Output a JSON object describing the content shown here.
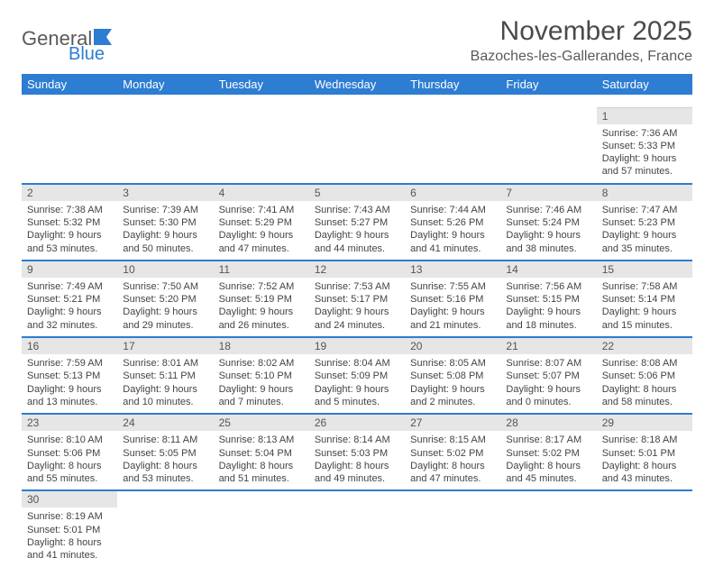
{
  "brand": {
    "name1": "General",
    "name2": "Blue"
  },
  "title": "November 2025",
  "location": "Bazoches-les-Gallerandes, France",
  "colors": {
    "header_bg": "#2d7dd2",
    "header_text": "#ffffff",
    "daynum_bg": "#e6e6e6",
    "row_divider": "#2d7dd2",
    "body_text": "#444444",
    "title_text": "#4a4a4a"
  },
  "typography": {
    "title_fontsize": 30,
    "location_fontsize": 16,
    "dayheader_fontsize": 13,
    "daynum_fontsize": 12,
    "cell_fontsize": 11
  },
  "dayHeaders": [
    "Sunday",
    "Monday",
    "Tuesday",
    "Wednesday",
    "Thursday",
    "Friday",
    "Saturday"
  ],
  "weeks": [
    [
      null,
      null,
      null,
      null,
      null,
      null,
      {
        "n": "1",
        "sr": "Sunrise: 7:36 AM",
        "ss": "Sunset: 5:33 PM",
        "d1": "Daylight: 9 hours",
        "d2": "and 57 minutes."
      }
    ],
    [
      {
        "n": "2",
        "sr": "Sunrise: 7:38 AM",
        "ss": "Sunset: 5:32 PM",
        "d1": "Daylight: 9 hours",
        "d2": "and 53 minutes."
      },
      {
        "n": "3",
        "sr": "Sunrise: 7:39 AM",
        "ss": "Sunset: 5:30 PM",
        "d1": "Daylight: 9 hours",
        "d2": "and 50 minutes."
      },
      {
        "n": "4",
        "sr": "Sunrise: 7:41 AM",
        "ss": "Sunset: 5:29 PM",
        "d1": "Daylight: 9 hours",
        "d2": "and 47 minutes."
      },
      {
        "n": "5",
        "sr": "Sunrise: 7:43 AM",
        "ss": "Sunset: 5:27 PM",
        "d1": "Daylight: 9 hours",
        "d2": "and 44 minutes."
      },
      {
        "n": "6",
        "sr": "Sunrise: 7:44 AM",
        "ss": "Sunset: 5:26 PM",
        "d1": "Daylight: 9 hours",
        "d2": "and 41 minutes."
      },
      {
        "n": "7",
        "sr": "Sunrise: 7:46 AM",
        "ss": "Sunset: 5:24 PM",
        "d1": "Daylight: 9 hours",
        "d2": "and 38 minutes."
      },
      {
        "n": "8",
        "sr": "Sunrise: 7:47 AM",
        "ss": "Sunset: 5:23 PM",
        "d1": "Daylight: 9 hours",
        "d2": "and 35 minutes."
      }
    ],
    [
      {
        "n": "9",
        "sr": "Sunrise: 7:49 AM",
        "ss": "Sunset: 5:21 PM",
        "d1": "Daylight: 9 hours",
        "d2": "and 32 minutes."
      },
      {
        "n": "10",
        "sr": "Sunrise: 7:50 AM",
        "ss": "Sunset: 5:20 PM",
        "d1": "Daylight: 9 hours",
        "d2": "and 29 minutes."
      },
      {
        "n": "11",
        "sr": "Sunrise: 7:52 AM",
        "ss": "Sunset: 5:19 PM",
        "d1": "Daylight: 9 hours",
        "d2": "and 26 minutes."
      },
      {
        "n": "12",
        "sr": "Sunrise: 7:53 AM",
        "ss": "Sunset: 5:17 PM",
        "d1": "Daylight: 9 hours",
        "d2": "and 24 minutes."
      },
      {
        "n": "13",
        "sr": "Sunrise: 7:55 AM",
        "ss": "Sunset: 5:16 PM",
        "d1": "Daylight: 9 hours",
        "d2": "and 21 minutes."
      },
      {
        "n": "14",
        "sr": "Sunrise: 7:56 AM",
        "ss": "Sunset: 5:15 PM",
        "d1": "Daylight: 9 hours",
        "d2": "and 18 minutes."
      },
      {
        "n": "15",
        "sr": "Sunrise: 7:58 AM",
        "ss": "Sunset: 5:14 PM",
        "d1": "Daylight: 9 hours",
        "d2": "and 15 minutes."
      }
    ],
    [
      {
        "n": "16",
        "sr": "Sunrise: 7:59 AM",
        "ss": "Sunset: 5:13 PM",
        "d1": "Daylight: 9 hours",
        "d2": "and 13 minutes."
      },
      {
        "n": "17",
        "sr": "Sunrise: 8:01 AM",
        "ss": "Sunset: 5:11 PM",
        "d1": "Daylight: 9 hours",
        "d2": "and 10 minutes."
      },
      {
        "n": "18",
        "sr": "Sunrise: 8:02 AM",
        "ss": "Sunset: 5:10 PM",
        "d1": "Daylight: 9 hours",
        "d2": "and 7 minutes."
      },
      {
        "n": "19",
        "sr": "Sunrise: 8:04 AM",
        "ss": "Sunset: 5:09 PM",
        "d1": "Daylight: 9 hours",
        "d2": "and 5 minutes."
      },
      {
        "n": "20",
        "sr": "Sunrise: 8:05 AM",
        "ss": "Sunset: 5:08 PM",
        "d1": "Daylight: 9 hours",
        "d2": "and 2 minutes."
      },
      {
        "n": "21",
        "sr": "Sunrise: 8:07 AM",
        "ss": "Sunset: 5:07 PM",
        "d1": "Daylight: 9 hours",
        "d2": "and 0 minutes."
      },
      {
        "n": "22",
        "sr": "Sunrise: 8:08 AM",
        "ss": "Sunset: 5:06 PM",
        "d1": "Daylight: 8 hours",
        "d2": "and 58 minutes."
      }
    ],
    [
      {
        "n": "23",
        "sr": "Sunrise: 8:10 AM",
        "ss": "Sunset: 5:06 PM",
        "d1": "Daylight: 8 hours",
        "d2": "and 55 minutes."
      },
      {
        "n": "24",
        "sr": "Sunrise: 8:11 AM",
        "ss": "Sunset: 5:05 PM",
        "d1": "Daylight: 8 hours",
        "d2": "and 53 minutes."
      },
      {
        "n": "25",
        "sr": "Sunrise: 8:13 AM",
        "ss": "Sunset: 5:04 PM",
        "d1": "Daylight: 8 hours",
        "d2": "and 51 minutes."
      },
      {
        "n": "26",
        "sr": "Sunrise: 8:14 AM",
        "ss": "Sunset: 5:03 PM",
        "d1": "Daylight: 8 hours",
        "d2": "and 49 minutes."
      },
      {
        "n": "27",
        "sr": "Sunrise: 8:15 AM",
        "ss": "Sunset: 5:02 PM",
        "d1": "Daylight: 8 hours",
        "d2": "and 47 minutes."
      },
      {
        "n": "28",
        "sr": "Sunrise: 8:17 AM",
        "ss": "Sunset: 5:02 PM",
        "d1": "Daylight: 8 hours",
        "d2": "and 45 minutes."
      },
      {
        "n": "29",
        "sr": "Sunrise: 8:18 AM",
        "ss": "Sunset: 5:01 PM",
        "d1": "Daylight: 8 hours",
        "d2": "and 43 minutes."
      }
    ],
    [
      {
        "n": "30",
        "sr": "Sunrise: 8:19 AM",
        "ss": "Sunset: 5:01 PM",
        "d1": "Daylight: 8 hours",
        "d2": "and 41 minutes."
      },
      null,
      null,
      null,
      null,
      null,
      null
    ]
  ]
}
